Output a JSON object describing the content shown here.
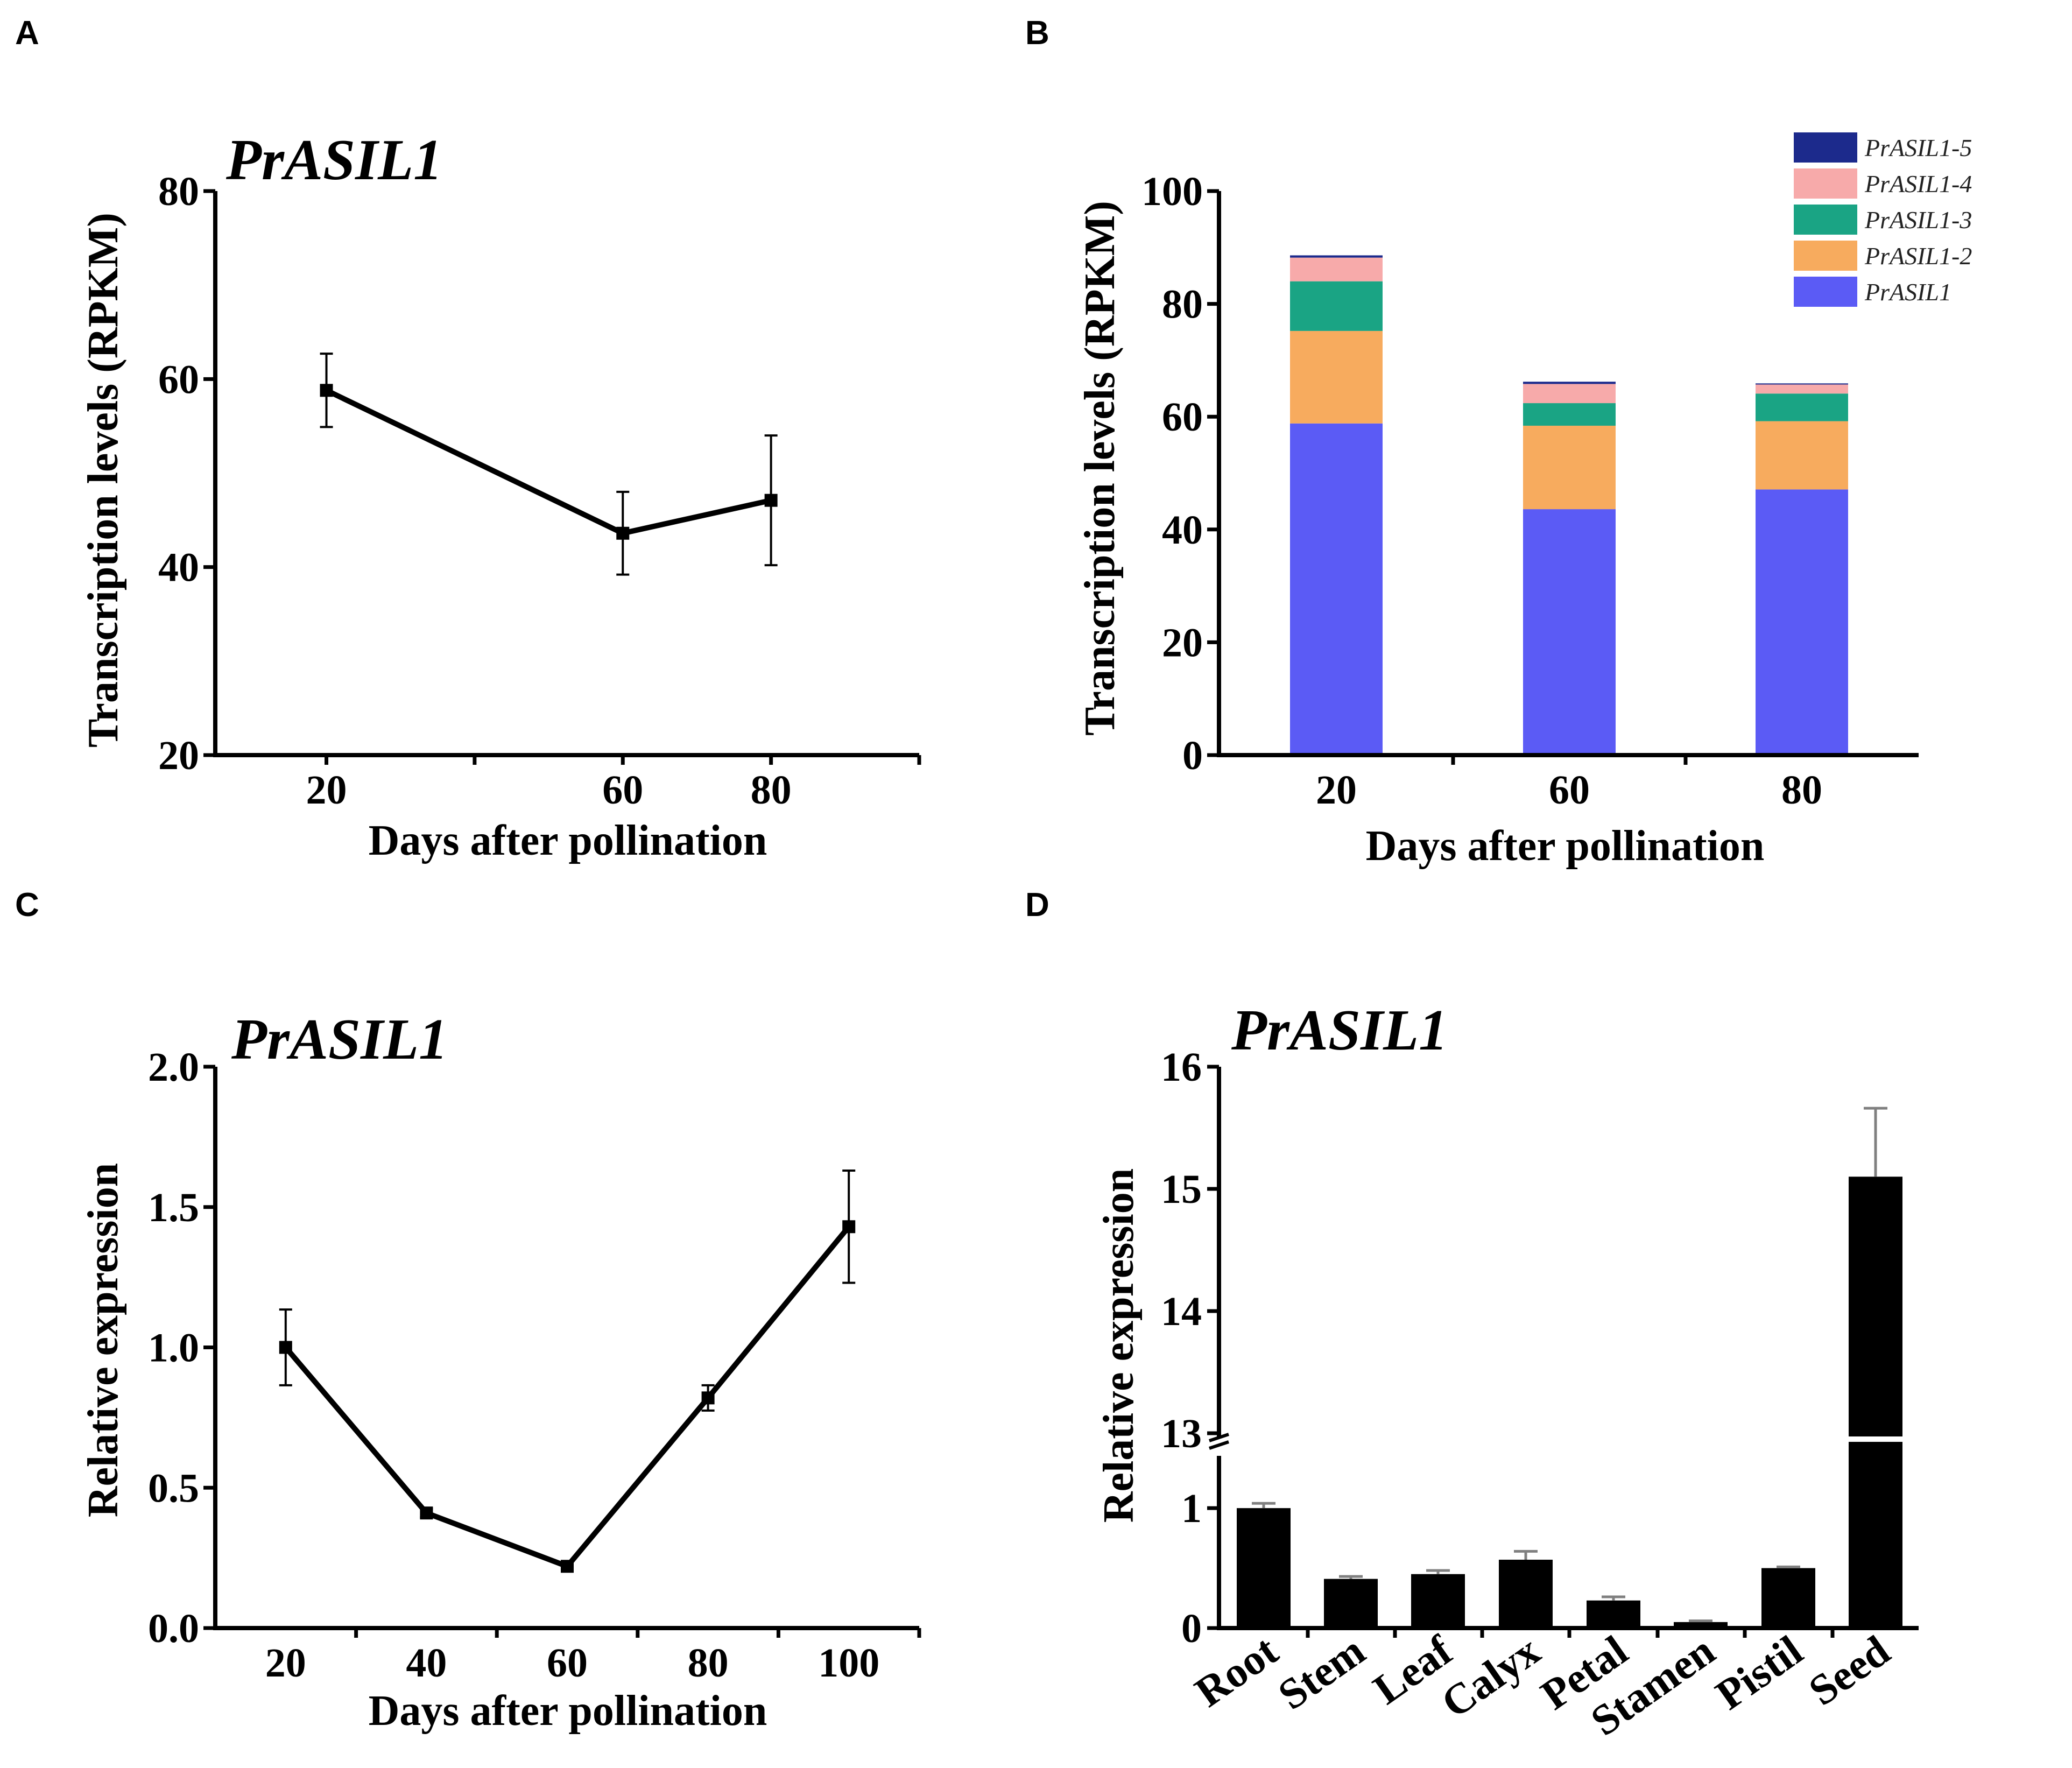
{
  "panels": {
    "A": "A",
    "B": "B",
    "C": "C",
    "D": "D"
  },
  "colors": {
    "PrASIL1": "#5b5bf5",
    "PrASIL1-2": "#f7ab5e",
    "PrASIL1-3": "#1aa484",
    "PrASIL1-4": "#f7aaaa",
    "PrASIL1-5": "#1c2a8c"
  },
  "chart_data": [
    {
      "id": "A",
      "type": "line",
      "title": "PrASIL1",
      "xlabel": "Days after pollination",
      "ylabel": "Transcription levels (RPKM)",
      "x": [
        20,
        60,
        80
      ],
      "y": [
        58.8,
        43.6,
        47.1
      ],
      "err": [
        3.9,
        4.4,
        6.9
      ],
      "xlim": [
        5,
        100
      ],
      "ylim": [
        20,
        80
      ],
      "yticks": [
        20,
        40,
        60,
        80
      ],
      "xticks": [
        20,
        60,
        80
      ]
    },
    {
      "id": "B",
      "type": "bar",
      "stacked": true,
      "xlabel": "Days after pollination",
      "ylabel": "Transcription levels (RPKM)",
      "categories": [
        "20",
        "60",
        "80"
      ],
      "series": [
        {
          "name": "PrASIL1",
          "values": [
            58.8,
            43.6,
            47.1
          ]
        },
        {
          "name": "PrASIL1-2",
          "values": [
            16.4,
            14.8,
            12.1
          ]
        },
        {
          "name": "PrASIL1-3",
          "values": [
            8.8,
            4.0,
            4.9
          ]
        },
        {
          "name": "PrASIL1-4",
          "values": [
            4.2,
            3.4,
            1.6
          ]
        },
        {
          "name": "PrASIL1-5",
          "values": [
            0.4,
            0.4,
            0.2
          ]
        }
      ],
      "legend_order": [
        "PrASIL1-5",
        "PrASIL1-4",
        "PrASIL1-3",
        "PrASIL1-2",
        "PrASIL1"
      ],
      "ylim": [
        0,
        100
      ],
      "yticks": [
        0,
        20,
        40,
        60,
        80,
        100
      ]
    },
    {
      "id": "C",
      "type": "line",
      "title": "PrASIL1",
      "xlabel": "Days after pollination",
      "ylabel": "Relative expression",
      "x": [
        20,
        40,
        60,
        80,
        100
      ],
      "y": [
        1.0,
        0.41,
        0.22,
        0.82,
        1.43
      ],
      "err": [
        0.135,
        0.015,
        0.01,
        0.045,
        0.2
      ],
      "xlim": [
        10,
        110
      ],
      "ylim": [
        0,
        2
      ],
      "yticks": [
        "0.0",
        "0.5",
        "1.0",
        "1.5",
        "2.0"
      ],
      "xticks": [
        20,
        40,
        60,
        80,
        100
      ]
    },
    {
      "id": "D",
      "type": "bar",
      "title": "PrASIL1",
      "ylabel": "Relative expression",
      "categories": [
        "Root",
        "Stem",
        "Leaf",
        "Calyx",
        "Petal",
        "Stamen",
        "Pistil",
        "Seed"
      ],
      "values": [
        1.0,
        0.41,
        0.45,
        0.57,
        0.23,
        0.05,
        0.5,
        15.1
      ],
      "err": [
        0.04,
        0.02,
        0.03,
        0.07,
        0.03,
        0.01,
        0.01,
        0.56
      ],
      "axis_break": [
        1.4,
        13
      ],
      "yticks": [
        "0",
        "1",
        "13",
        "14",
        "15",
        "16"
      ]
    }
  ]
}
